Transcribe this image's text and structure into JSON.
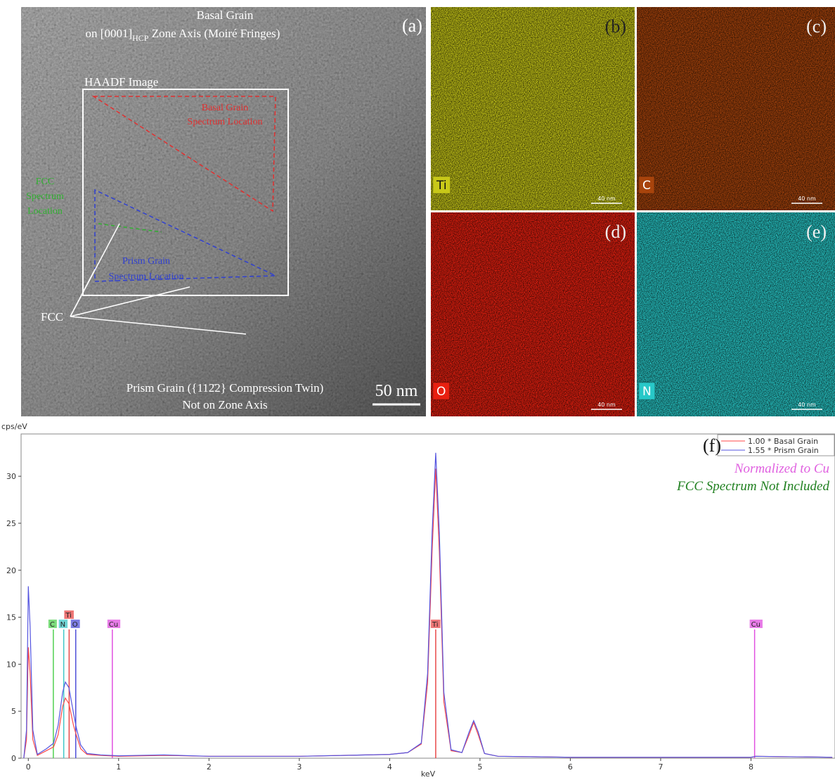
{
  "panels": {
    "a": {
      "label": "(a)",
      "title": "Basal Grain",
      "subtitle": [
        "on [0001]",
        "HCP",
        " Zone Axis (Moiré Fringes)"
      ],
      "haadf": "HAADF Image",
      "basal_location": [
        "Basal Grain",
        "Spectrum Location"
      ],
      "fcc_location": [
        "FCC",
        "Spectrum",
        "Location"
      ],
      "prism_location": [
        "Prism Grain",
        "Spectrum Location"
      ],
      "fcc": "FCC",
      "bottom": [
        "Prism Grain ({112̄2} Compression Twin)",
        "Not on Zone Axis"
      ],
      "scale": "50 nm"
    },
    "maps": [
      {
        "label": "(b)",
        "element": "Ti",
        "color": "#c8c818",
        "scale": "40 nm"
      },
      {
        "label": "(c)",
        "element": "C",
        "color": "#a8440c",
        "scale": "40 nm"
      },
      {
        "label": "(d)",
        "element": "O",
        "color": "#e82010",
        "scale": "40 nm"
      },
      {
        "label": "(e)",
        "element": "N",
        "color": "#28c8c8",
        "scale": "40 nm"
      }
    ]
  },
  "chart_data": {
    "type": "line",
    "y_label": "cps/eV",
    "x_label": "keV",
    "panel_label": "(f)",
    "annotations": [
      {
        "text": "Normalized to Cu",
        "color": "#e060e0"
      },
      {
        "text": "FCC Spectrum Not Included",
        "color": "#208020"
      }
    ],
    "x": [
      -0.05,
      -0.02,
      0,
      0.02,
      0.05,
      0.1,
      0.2,
      0.28,
      0.33,
      0.38,
      0.41,
      0.45,
      0.5,
      0.53,
      0.58,
      0.65,
      0.8,
      1.0,
      1.5,
      2.0,
      3.0,
      3.5,
      4.0,
      4.2,
      4.35,
      4.42,
      4.47,
      4.51,
      4.55,
      4.6,
      4.68,
      4.8,
      4.88,
      4.93,
      4.98,
      5.05,
      5.2,
      6,
      7,
      8.0,
      8.05,
      8.9
    ],
    "series": [
      {
        "name": "1.00 * Basal Grain",
        "color": "#ff4a4a",
        "values": [
          0,
          2,
          11.8,
          9,
          2,
          0.3,
          0.8,
          1.2,
          2.5,
          5.5,
          6.4,
          5.8,
          3.5,
          2.5,
          1.0,
          0.4,
          0.3,
          0.2,
          0.3,
          0.2,
          0.2,
          0.3,
          0.4,
          0.6,
          1.5,
          8,
          22,
          30.8,
          22,
          6,
          0.8,
          0.6,
          2.5,
          3.8,
          2.5,
          0.5,
          0.2,
          0.1,
          0.1,
          0.1,
          0.2,
          0.1
        ]
      },
      {
        "name": "1.55 * Prism Grain",
        "color": "#5555e0",
        "values": [
          0,
          3,
          18.3,
          14,
          3,
          0.4,
          1.0,
          1.6,
          3.5,
          7,
          8.1,
          7.5,
          4.8,
          3.3,
          1.4,
          0.5,
          0.35,
          0.25,
          0.35,
          0.2,
          0.2,
          0.3,
          0.4,
          0.6,
          1.6,
          9,
          24,
          32.5,
          24,
          7,
          0.9,
          0.6,
          2.8,
          4.0,
          2.8,
          0.5,
          0.2,
          0.1,
          0.1,
          0.1,
          0.2,
          0.1
        ]
      }
    ],
    "markers": [
      {
        "label": "C",
        "x": 0.277,
        "height": 13.7,
        "color": "#50d050"
      },
      {
        "label": "N",
        "x": 0.392,
        "height": 13.7,
        "color": "#40c8c8"
      },
      {
        "label": "Ti",
        "x": 0.452,
        "height": 13.7,
        "color": "#e84848"
      },
      {
        "label": "O",
        "x": 0.525,
        "height": 13.7,
        "color": "#5050d8"
      },
      {
        "label": "Cu",
        "x": 0.93,
        "height": 13.7,
        "color": "#e050e0"
      },
      {
        "label": "Ti",
        "x": 4.51,
        "height": 13.7,
        "color": "#e84848"
      },
      {
        "label": "Cu",
        "x": 8.04,
        "height": 13.7,
        "color": "#e050e0"
      }
    ],
    "xlim": [
      -0.08,
      8.93
    ],
    "ylim": [
      0,
      34.5
    ],
    "xticks": [
      0,
      1,
      2,
      3,
      4,
      5,
      6,
      7,
      8
    ],
    "yticks": [
      0,
      5,
      10,
      15,
      20,
      25,
      30
    ]
  }
}
